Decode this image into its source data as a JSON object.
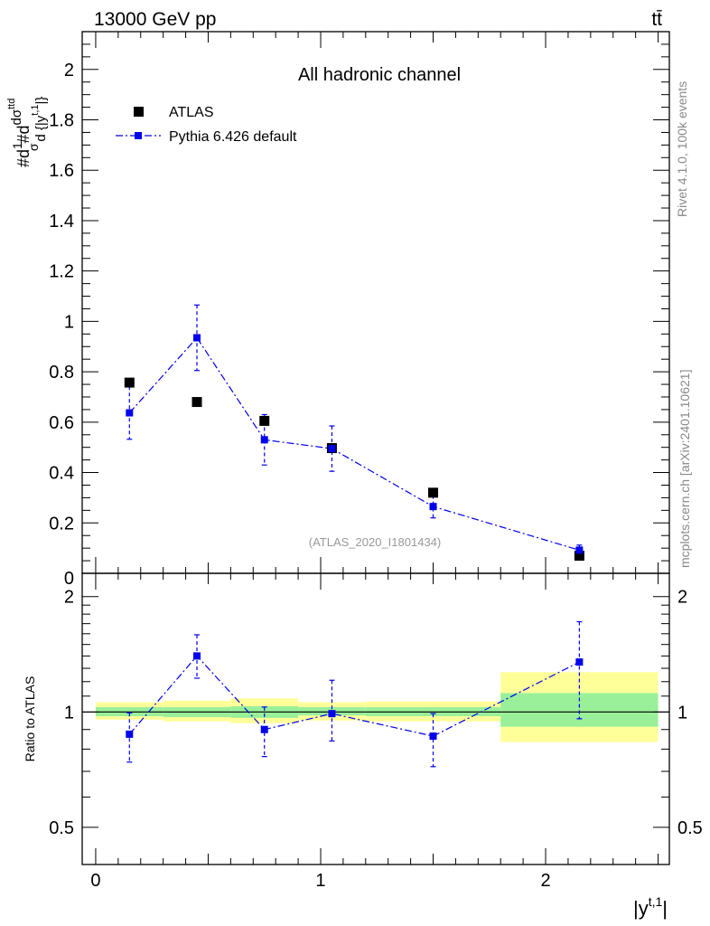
{
  "header": {
    "energy_label": "13000 GeV pp",
    "process_label": "tt̄"
  },
  "side_labels": {
    "rivet": "Rivet 4.1.0,  100k events",
    "mcplots": "mcplots.cern.ch [arXiv:2401.10621]"
  },
  "chart_data": [
    {
      "type": "scatter",
      "panel": "main",
      "title": "All hadronic channel",
      "watermark": "(ATLAS_2020_I1801434)",
      "xlabel": "|y^{t,1}|",
      "ylabel": "#d¹/σ#d dσ^{tt̄} / d {|y^{t,1}|}",
      "ylabel_parts": {
        "prefix": "#d",
        "one": "1",
        "sigma": "σ",
        "mid": "#d",
        "num": "dσ",
        "sup": "ttd",
        "den": "d {|y",
        "densup": "t,1",
        "tail": "|}"
      },
      "xlim": [
        -0.06,
        2.55
      ],
      "ylim": [
        0,
        2.15
      ],
      "yticks": [
        0.2,
        0.4,
        0.6,
        0.8,
        1,
        1.2,
        1.4,
        1.6,
        1.8,
        2
      ],
      "ytick_labels": [
        "0.2",
        "0.4",
        "0.6",
        "0.8",
        "1",
        "1.2",
        "1.4",
        "1.6",
        "1.8",
        "2"
      ],
      "bottom_partial_label": "0",
      "legend_position": "top-left",
      "series": [
        {
          "name": "ATLAS",
          "marker": "square",
          "color": "#000000",
          "x": [
            0.15,
            0.45,
            0.75,
            1.05,
            1.5,
            2.15
          ],
          "y": [
            0.757,
            0.68,
            0.605,
            0.497,
            0.32,
            0.07
          ]
        },
        {
          "name": "Pythia 6.426 default",
          "marker": "square-line",
          "color": "#0000ee",
          "x": [
            0.15,
            0.45,
            0.75,
            1.05,
            1.5,
            2.15
          ],
          "y": [
            0.637,
            0.935,
            0.53,
            0.495,
            0.265,
            0.092
          ],
          "yerr": [
            0.105,
            0.13,
            0.1,
            0.09,
            0.045,
            0.02
          ]
        }
      ]
    },
    {
      "type": "scatter",
      "panel": "ratio",
      "ylabel": "Ratio to ATLAS",
      "xlabel": "|y^{t,1}|",
      "yscale": "log",
      "xlim": [
        -0.06,
        2.55
      ],
      "ylim": [
        0.4,
        2.3
      ],
      "yticks": [
        0.5,
        1,
        2
      ],
      "ytick_labels": [
        "0.5",
        "1",
        "2"
      ],
      "xticks": [
        0,
        1,
        2
      ],
      "xtick_labels": [
        "0",
        "1",
        "2"
      ],
      "bands": [
        {
          "x0": 0.0,
          "x1": 0.3,
          "inner": [
            0.975,
            1.03
          ],
          "outer": [
            0.955,
            1.06
          ]
        },
        {
          "x0": 0.3,
          "x1": 0.6,
          "inner": [
            0.97,
            1.03
          ],
          "outer": [
            0.945,
            1.07
          ]
        },
        {
          "x0": 0.6,
          "x1": 0.9,
          "inner": [
            0.965,
            1.035
          ],
          "outer": [
            0.935,
            1.085
          ]
        },
        {
          "x0": 0.9,
          "x1": 1.2,
          "inner": [
            0.98,
            1.03
          ],
          "outer": [
            0.95,
            1.06
          ]
        },
        {
          "x0": 1.2,
          "x1": 1.8,
          "inner": [
            0.975,
            1.03
          ],
          "outer": [
            0.945,
            1.065
          ]
        },
        {
          "x0": 1.8,
          "x1": 2.5,
          "inner": [
            0.915,
            1.12
          ],
          "outer": [
            0.835,
            1.27
          ]
        }
      ],
      "series": [
        {
          "name": "Pythia 6.426 default",
          "color": "#0000ee",
          "x": [
            0.15,
            0.45,
            0.75,
            1.05,
            1.5,
            2.15
          ],
          "y": [
            0.875,
            1.4,
            0.9,
            0.99,
            0.865,
            1.35
          ],
          "yerr_low": [
            0.135,
            0.175,
            0.135,
            0.15,
            0.145,
            0.39
          ],
          "yerr_high": [
            0.12,
            0.19,
            0.13,
            0.22,
            0.125,
            0.37
          ]
        }
      ],
      "colors": {
        "inner_band": "#99f099",
        "outer_band": "#ffff99",
        "reference_line": "#000000"
      }
    }
  ]
}
